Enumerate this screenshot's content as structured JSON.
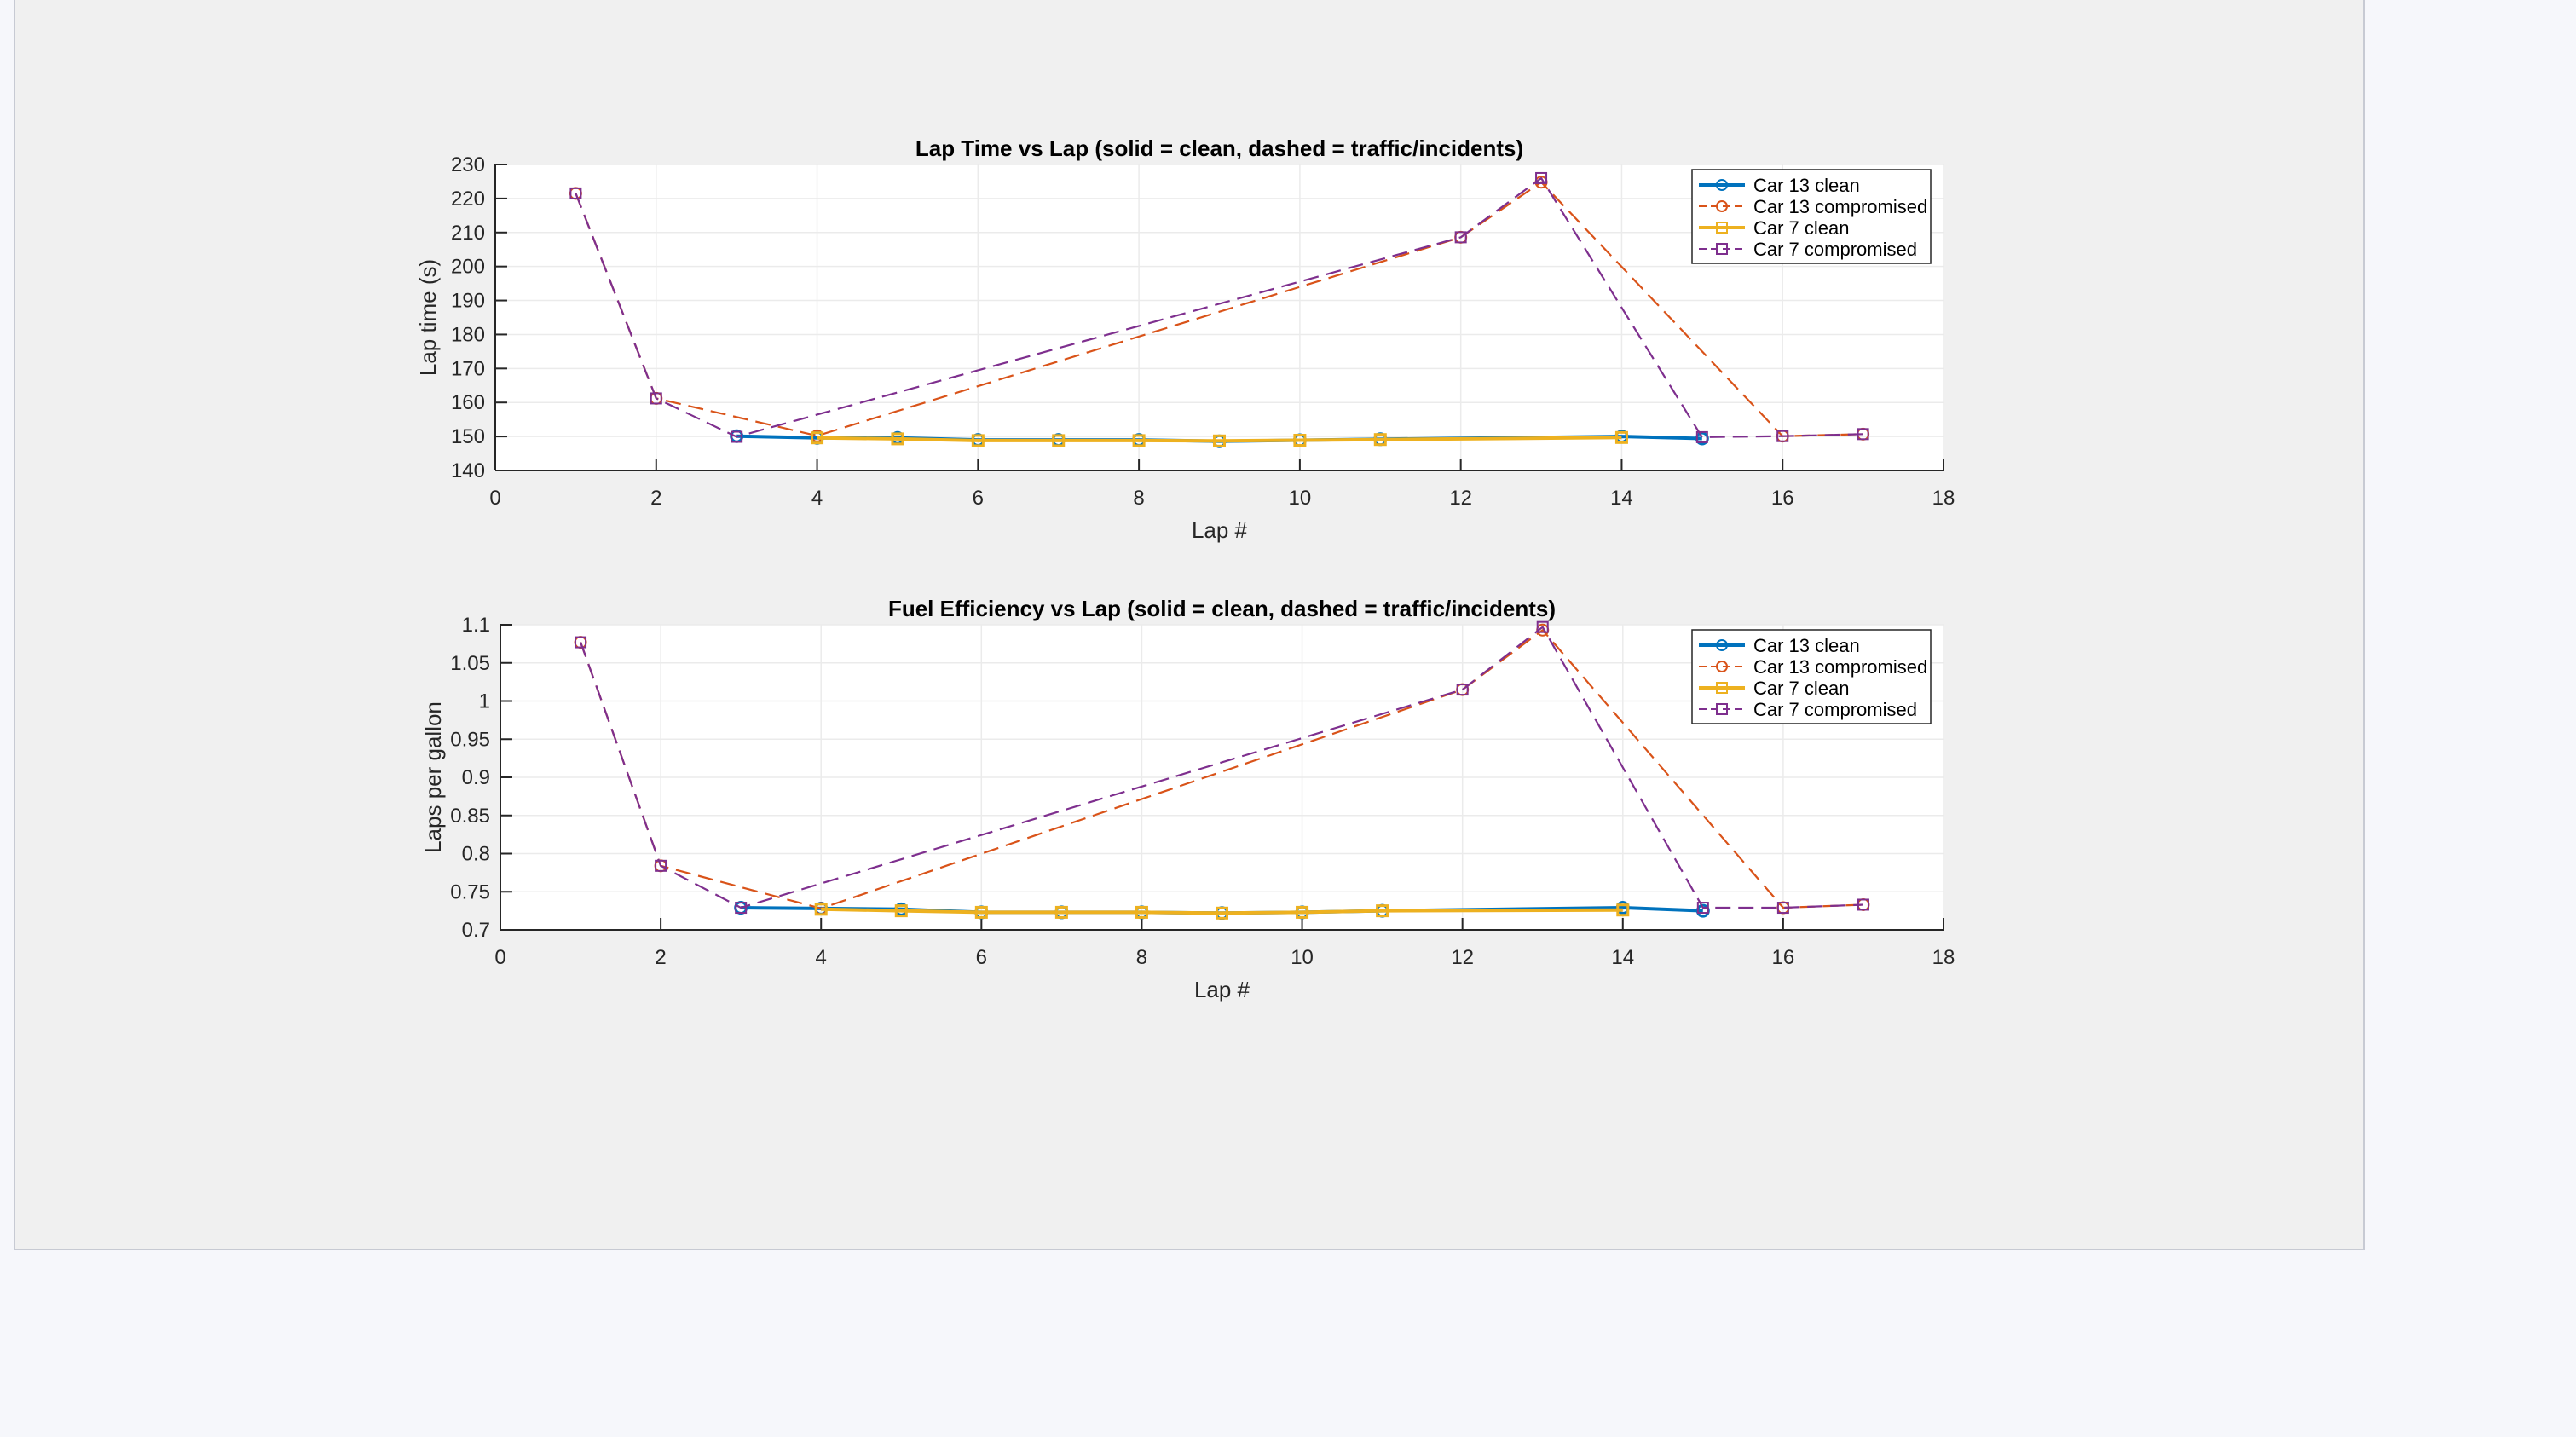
{
  "chart_data": [
    {
      "type": "line",
      "title": "Lap Time vs Lap (solid = clean, dashed = traffic/incidents)",
      "xlabel": "Lap #",
      "ylabel": "Lap time (s)",
      "xlim": [
        0,
        18
      ],
      "ylim": [
        140,
        230
      ],
      "xticks": [
        "0",
        "2",
        "4",
        "6",
        "8",
        "10",
        "12",
        "14",
        "16",
        "18"
      ],
      "yticks": [
        "140",
        "150",
        "160",
        "170",
        "180",
        "190",
        "200",
        "210",
        "220",
        "230"
      ],
      "grid": true,
      "legend_position": "top-right",
      "series": [
        {
          "name": "Car 13 clean",
          "color": "#0072BD",
          "line": "solid",
          "marker": "circle",
          "x": [
            3,
            4,
            5,
            6,
            7,
            8,
            9,
            10,
            11,
            14,
            15
          ],
          "y": [
            150.1,
            149.6,
            149.6,
            149.0,
            149.0,
            149.0,
            148.6,
            148.9,
            149.2,
            150.0,
            149.4
          ]
        },
        {
          "name": "Car 13 compromised",
          "color": "#D95319",
          "line": "dashed",
          "marker": "circle",
          "x": [
            1,
            2,
            4,
            12,
            13,
            16,
            17
          ],
          "y": [
            221.5,
            161.2,
            150.2,
            208.6,
            224.8,
            150.1,
            150.7
          ]
        },
        {
          "name": "Car 7 clean",
          "color": "#EDB120",
          "line": "solid",
          "marker": "square",
          "x": [
            4,
            5,
            6,
            7,
            8,
            9,
            10,
            11,
            14
          ],
          "y": [
            149.6,
            149.3,
            148.8,
            148.8,
            148.8,
            148.7,
            148.9,
            149.1,
            149.7
          ]
        },
        {
          "name": "Car 7 compromised",
          "color": "#7E2F8E",
          "line": "dashed",
          "marker": "square",
          "x": [
            1,
            2,
            3,
            12,
            13,
            15,
            16,
            17
          ],
          "y": [
            221.5,
            161.2,
            149.9,
            208.6,
            226.0,
            149.8,
            150.1,
            150.7
          ]
        }
      ]
    },
    {
      "type": "line",
      "title": "Fuel Efficiency vs Lap (solid = clean, dashed = traffic/incidents)",
      "xlabel": "Lap #",
      "ylabel": "Laps per gallon",
      "xlim": [
        0,
        18
      ],
      "ylim": [
        0.7,
        1.1
      ],
      "xticks": [
        "0",
        "2",
        "4",
        "6",
        "8",
        "10",
        "12",
        "14",
        "16",
        "18"
      ],
      "yticks": [
        "0.7",
        "0.75",
        "0.8",
        "0.85",
        "0.9",
        "0.95",
        "1",
        "1.05",
        "1.1"
      ],
      "grid": true,
      "legend_position": "top-right",
      "series": [
        {
          "name": "Car 13 clean",
          "color": "#0072BD",
          "line": "solid",
          "marker": "circle",
          "x": [
            3,
            4,
            5,
            6,
            7,
            8,
            9,
            10,
            11,
            14,
            15
          ],
          "y": [
            0.729,
            0.728,
            0.727,
            0.723,
            0.723,
            0.723,
            0.722,
            0.723,
            0.725,
            0.729,
            0.725
          ]
        },
        {
          "name": "Car 13 compromised",
          "color": "#D95319",
          "line": "dashed",
          "marker": "circle",
          "x": [
            1,
            2,
            4,
            12,
            13,
            16,
            17
          ],
          "y": [
            1.077,
            0.784,
            0.728,
            1.015,
            1.093,
            0.729,
            0.733
          ]
        },
        {
          "name": "Car 7 clean",
          "color": "#EDB120",
          "line": "solid",
          "marker": "square",
          "x": [
            4,
            5,
            6,
            7,
            8,
            9,
            10,
            11,
            14
          ],
          "y": [
            0.727,
            0.725,
            0.723,
            0.723,
            0.723,
            0.722,
            0.723,
            0.725,
            0.726
          ]
        },
        {
          "name": "Car 7 compromised",
          "color": "#7E2F8E",
          "line": "dashed",
          "marker": "square",
          "x": [
            1,
            2,
            3,
            12,
            13,
            15,
            16,
            17
          ],
          "y": [
            1.077,
            0.784,
            0.729,
            1.015,
            1.097,
            0.729,
            0.729,
            0.733
          ]
        }
      ]
    }
  ]
}
